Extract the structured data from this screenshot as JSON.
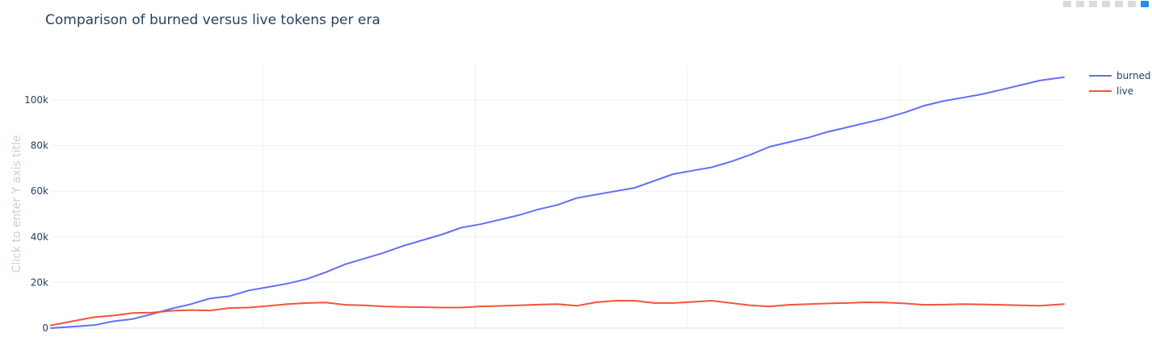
{
  "chart_data": {
    "type": "line",
    "title": "Comparison of burned versus live tokens per era",
    "ylabel": "Click to enter Y axis title",
    "xlabel": "",
    "x_range": [
      0,
      210
    ],
    "ylim": [
      -1000,
      115000
    ],
    "y_ticks": [
      0,
      20000,
      40000,
      60000,
      80000,
      100000
    ],
    "y_tick_labels": [
      "0",
      "20k",
      "40k",
      "60k",
      "80k",
      "100k"
    ],
    "x_grid": [
      44,
      88,
      132,
      176
    ],
    "x_tick_labels": [],
    "grid": true,
    "legend_position": "top-right",
    "series": [
      {
        "name": "burned",
        "color": "#636efa",
        "x": [
          0,
          5,
          9,
          13,
          17,
          21,
          25,
          29,
          33,
          37,
          41,
          45,
          49,
          53,
          57,
          61,
          65,
          69,
          73,
          77,
          81,
          85,
          89,
          93,
          97,
          101,
          105,
          109,
          113,
          117,
          121,
          125,
          129,
          133,
          137,
          141,
          145,
          149,
          153,
          157,
          161,
          165,
          169,
          173,
          177,
          181,
          185,
          189,
          193,
          197,
          201,
          205,
          210
        ],
        "values": [
          0,
          700,
          1300,
          3000,
          4000,
          6200,
          8500,
          10500,
          13000,
          14000,
          16500,
          18000,
          19500,
          21500,
          24500,
          28000,
          30500,
          33000,
          36000,
          38500,
          41000,
          44000,
          45500,
          47500,
          49500,
          52000,
          54000,
          57000,
          58500,
          60000,
          61500,
          64500,
          67500,
          69000,
          70500,
          73000,
          76000,
          79500,
          81500,
          83500,
          86000,
          88000,
          90000,
          92000,
          94500,
          97500,
          99500,
          101000,
          102500,
          104500,
          106500,
          108500,
          110000
        ]
      },
      {
        "name": "live",
        "color": "#ef553b",
        "x": [
          0,
          5,
          9,
          13,
          17,
          21,
          25,
          29,
          33,
          37,
          41,
          45,
          49,
          53,
          57,
          61,
          65,
          69,
          73,
          77,
          81,
          85,
          89,
          93,
          97,
          101,
          105,
          109,
          113,
          117,
          121,
          125,
          129,
          133,
          137,
          141,
          145,
          149,
          153,
          157,
          161,
          165,
          169,
          173,
          177,
          181,
          185,
          189,
          193,
          197,
          201,
          205,
          210
        ],
        "values": [
          1200,
          3200,
          4800,
          5500,
          6600,
          6800,
          7600,
          7900,
          7700,
          8800,
          9000,
          9700,
          10500,
          11000,
          11200,
          10200,
          10000,
          9500,
          9300,
          9200,
          9000,
          9000,
          9500,
          9700,
          10000,
          10300,
          10500,
          9800,
          11300,
          12000,
          12000,
          11000,
          11000,
          11500,
          12000,
          11000,
          10000,
          9500,
          10200,
          10500,
          10800,
          11000,
          11300,
          11200,
          10800,
          10200,
          10300,
          10500,
          10400,
          10200,
          10000,
          9800,
          10500
        ]
      }
    ]
  },
  "modebar": {
    "buttons": [
      "zoom-icon",
      "pan-icon",
      "zoom-in-icon",
      "zoom-out-icon",
      "autoscale-icon",
      "reset-icon",
      "logo-icon"
    ]
  }
}
